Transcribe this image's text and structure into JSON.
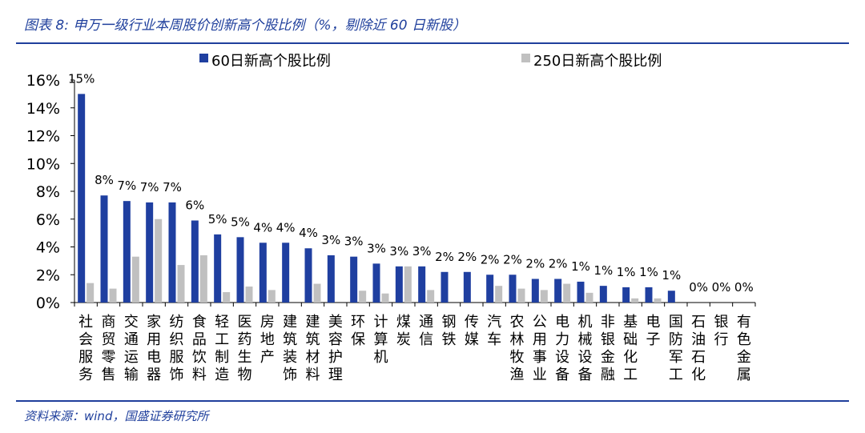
{
  "figure": {
    "title": "图表 8:  申万一级行业本周股价创新高个股比例（%，剔除近 60 日新股）",
    "source": "资料来源：wind，国盛证券研究所"
  },
  "colors": {
    "series1": "#1f3fa0",
    "series2": "#c0c0c0",
    "accent": "#1f3f9c"
  },
  "chart_data": {
    "type": "bar",
    "title": "",
    "xlabel": "",
    "ylabel": "",
    "ylim": [
      0,
      16
    ],
    "yticks": [
      0,
      2,
      4,
      6,
      8,
      10,
      12,
      14,
      16
    ],
    "ytick_labels": [
      "0%",
      "2%",
      "4%",
      "6%",
      "8%",
      "10%",
      "12%",
      "14%",
      "16%"
    ],
    "legend_position": "top",
    "grid": false,
    "categories": [
      "社会服务",
      "商贸零售",
      "交通运输",
      "家用电器",
      "纺织服饰",
      "食品饮料",
      "轻工制造",
      "医药生物",
      "房地产",
      "建筑装饰",
      "建筑材料",
      "美容护理",
      "环保",
      "计算机",
      "煤炭",
      "通信",
      "钢铁",
      "传媒",
      "汽车",
      "农林牧渔",
      "公用事业",
      "电力设备",
      "机械设备",
      "非银金融",
      "基础化工",
      "电子",
      "国防军工",
      "石油石化",
      "银行",
      "有色金属"
    ],
    "series": [
      {
        "name": "60日新高个股比例",
        "values": [
          15.0,
          7.7,
          7.3,
          7.2,
          7.2,
          5.9,
          4.9,
          4.7,
          4.3,
          4.3,
          3.9,
          3.4,
          3.3,
          2.8,
          2.6,
          2.6,
          2.2,
          2.2,
          2.0,
          2.0,
          1.7,
          1.7,
          1.5,
          1.2,
          1.1,
          1.1,
          0.85,
          0,
          0,
          0
        ],
        "labels": [
          "15%",
          "8%",
          "7%",
          "7%",
          "7%",
          "6%",
          "5%",
          "5%",
          "4%",
          "4%",
          "4%",
          "3%",
          "3%",
          "3%",
          "3%",
          "3%",
          "2%",
          "2%",
          "2%",
          "2%",
          "2%",
          "2%",
          "1%",
          "1%",
          "1%",
          "1%",
          "1%",
          "0%",
          "0%",
          "0%"
        ]
      },
      {
        "name": "250日新高个股比例",
        "values": [
          1.4,
          1.0,
          3.3,
          6.0,
          2.7,
          3.4,
          0.75,
          1.15,
          0.9,
          0.0,
          1.35,
          0.0,
          0.85,
          0.65,
          2.6,
          0.9,
          0.0,
          0.0,
          1.2,
          1.0,
          0.9,
          1.35,
          0.7,
          0.0,
          0.3,
          0.3,
          0.0,
          0,
          0,
          0
        ]
      }
    ]
  }
}
